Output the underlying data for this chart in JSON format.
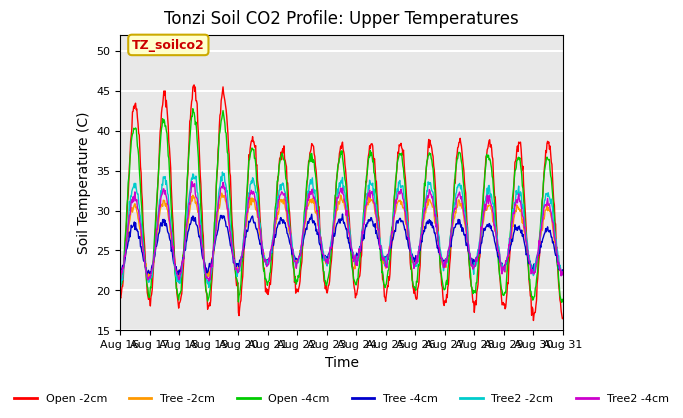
{
  "title": "Tonzi Soil CO2 Profile: Upper Temperatures",
  "xlabel": "Time",
  "ylabel": "Soil Temperature (C)",
  "ylim": [
    15,
    52
  ],
  "yticks": [
    15,
    20,
    25,
    30,
    35,
    40,
    45,
    50
  ],
  "xticklabels": [
    "Aug 16",
    "Aug 17",
    "Aug 18",
    "Aug 19",
    "Aug 20",
    "Aug 21",
    "Aug 22",
    "Aug 23",
    "Aug 24",
    "Aug 25",
    "Aug 26",
    "Aug 27",
    "Aug 28",
    "Aug 29",
    "Aug 30",
    "Aug 31"
  ],
  "annotation_text": "TZ_soilco2",
  "series_colors": [
    "#ff0000",
    "#ff9900",
    "#00cc00",
    "#0000cc",
    "#00cccc",
    "#cc00cc"
  ],
  "series_labels": [
    "Open -2cm",
    "Tree -2cm",
    "Open -4cm",
    "Tree -4cm",
    "Tree2 -2cm",
    "Tree2 -4cm"
  ],
  "n_days": 15,
  "samples_per_day": 48,
  "background_color": "#e8e8e8",
  "grid_color": "#ffffff"
}
